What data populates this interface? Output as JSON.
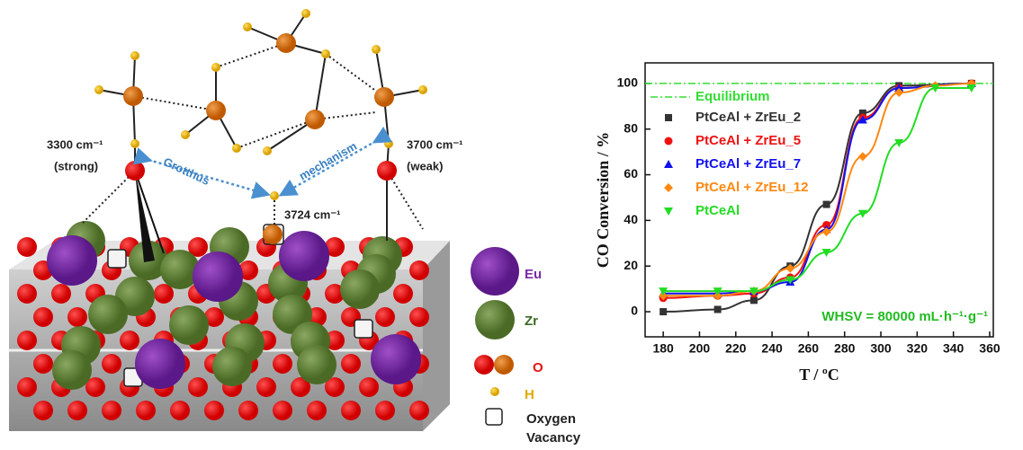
{
  "diagram": {
    "labels": [
      "3300 cm⁻¹",
      "(strong)",
      "3700 cm⁻¹",
      "(weak)",
      "3724 cm⁻¹",
      "Grotthus",
      "mechanism"
    ],
    "legend": [
      "Eu",
      "Zr",
      "O",
      "H",
      "Oxygen",
      "Vacancy"
    ]
  },
  "chart_data": {
    "type": "scatter",
    "x_label": "T / ºC",
    "y_label": "CO Conversion / %",
    "xlim": [
      170,
      362
    ],
    "ylim": [
      -11,
      109
    ],
    "xticks": [
      180,
      200,
      220,
      240,
      260,
      280,
      300,
      320,
      340,
      360
    ],
    "yticks": [
      0,
      20,
      40,
      60,
      80,
      100
    ],
    "reference_line": {
      "name": "Equilibrium",
      "value": 100,
      "color": "#33dd33"
    },
    "annotation": "WHSV = 80000 mL·h⁻¹·g⁻¹",
    "annotation_color": "#22bb22",
    "series": [
      {
        "name": "PtCeAl + ZrEu_2",
        "color": "#333333",
        "marker": "square",
        "x": [
          180,
          210,
          230,
          250,
          270,
          290,
          310,
          350
        ],
        "values": [
          0,
          1,
          5,
          20,
          47,
          87,
          99,
          100
        ]
      },
      {
        "name": "PtCeAl + ZrEu_5",
        "color": "#ee1111",
        "marker": "circle",
        "x": [
          180,
          210,
          230,
          250,
          270,
          290,
          310,
          350
        ],
        "values": [
          6,
          7,
          8,
          15,
          38,
          85,
          98,
          100
        ]
      },
      {
        "name": "PtCeAl + ZrEu_7",
        "color": "#1111ee",
        "marker": "triangle-up",
        "x": [
          180,
          210,
          230,
          250,
          270,
          290,
          310,
          350
        ],
        "values": [
          8,
          8,
          9,
          13,
          36,
          84,
          98,
          100
        ]
      },
      {
        "name": "PtCeAl + ZrEu_12",
        "color": "#ff8811",
        "marker": "diamond",
        "x": [
          180,
          210,
          230,
          250,
          270,
          290,
          310,
          330,
          350
        ],
        "values": [
          7,
          7,
          9,
          19,
          35,
          68,
          96,
          99,
          100
        ]
      },
      {
        "name": "PtCeAl",
        "color": "#22dd22",
        "marker": "triangle-down",
        "x": [
          180,
          210,
          230,
          250,
          270,
          290,
          310,
          330,
          350
        ],
        "values": [
          9,
          9,
          9,
          14,
          26,
          43,
          74,
          98,
          98
        ]
      }
    ]
  }
}
